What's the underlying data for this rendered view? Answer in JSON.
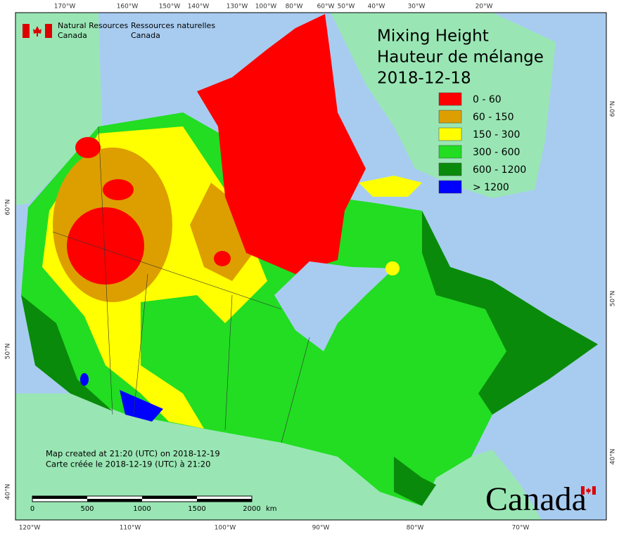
{
  "header": {
    "agency_en": [
      "Natural Resources",
      "Canada"
    ],
    "agency_fr": [
      "Ressources naturelles",
      "Canada"
    ]
  },
  "title": [
    "Mixing Height",
    "Hauteur de mélange",
    "2018-12-18"
  ],
  "legend": [
    {
      "label": "0 - 60",
      "color": "#ff0000"
    },
    {
      "label": "60 - 150",
      "color": "#dd9f00"
    },
    {
      "label": "150 - 300",
      "color": "#ffff00"
    },
    {
      "label": "300 - 600",
      "color": "#22dd22"
    },
    {
      "label": "600 - 1200",
      "color": "#0a8a0a"
    },
    {
      "label": "> 1200",
      "color": "#0000ff"
    }
  ],
  "top_longitudes": [
    "170°W",
    "160°W",
    "150°W",
    "140°W",
    "130°W",
    "100°W",
    "80°W",
    "60°W",
    "50°W",
    "40°W",
    "30°W",
    "20°W"
  ],
  "bottom_longitudes": [
    "120°W",
    "110°W",
    "100°W",
    "90°W",
    "80°W",
    "70°W"
  ],
  "left_latitudes": [
    "60°N",
    "50°N",
    "40°N"
  ],
  "right_latitudes": [
    "60°N",
    "50°N",
    "40°N"
  ],
  "notes": [
    "Map created at 21:20 (UTC) on 2018-12-19",
    "Carte créée le 2018-12-19 (UTC) à 21:20"
  ],
  "scale": {
    "ticks": [
      "0",
      "500",
      "1000",
      "1500",
      "2000"
    ],
    "unit": "km"
  },
  "wordmark": "Canada"
}
